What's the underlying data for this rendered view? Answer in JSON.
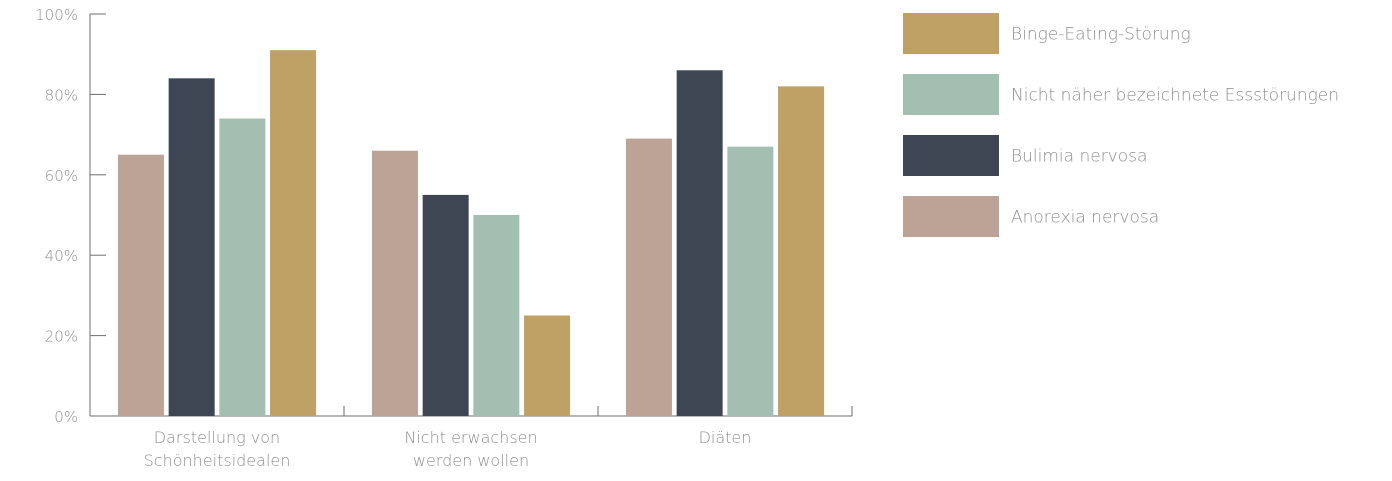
{
  "chart_data": {
    "type": "bar",
    "categories": [
      [
        "Darstellung von",
        "Schönheitsidealen"
      ],
      [
        "Nicht erwachsen",
        "werden wollen"
      ],
      [
        "Diäten"
      ]
    ],
    "series": [
      {
        "name": "Anorexia nervosa",
        "color": "#bca396",
        "values": [
          65,
          66,
          69
        ]
      },
      {
        "name": "Bulimia nervosa",
        "color": "#3e4553",
        "values": [
          84,
          55,
          86
        ]
      },
      {
        "name": "Nicht näher bezeichnete Essstörungen",
        "color": "#a3bfb1",
        "values": [
          74,
          50,
          67
        ]
      },
      {
        "name": "Binge-Eating-Störung",
        "color": "#bfa065",
        "values": [
          91,
          25,
          82
        ]
      }
    ],
    "legend_order": [
      3,
      2,
      1,
      0
    ],
    "legend_position": "right",
    "ylim": [
      0,
      100
    ],
    "yticks": [
      0,
      20,
      40,
      60,
      80,
      100
    ],
    "ytick_labels": [
      "0%",
      "20%",
      "40%",
      "60%",
      "80%",
      "100%"
    ],
    "grid": false,
    "title": "",
    "xlabel": "",
    "ylabel": ""
  }
}
